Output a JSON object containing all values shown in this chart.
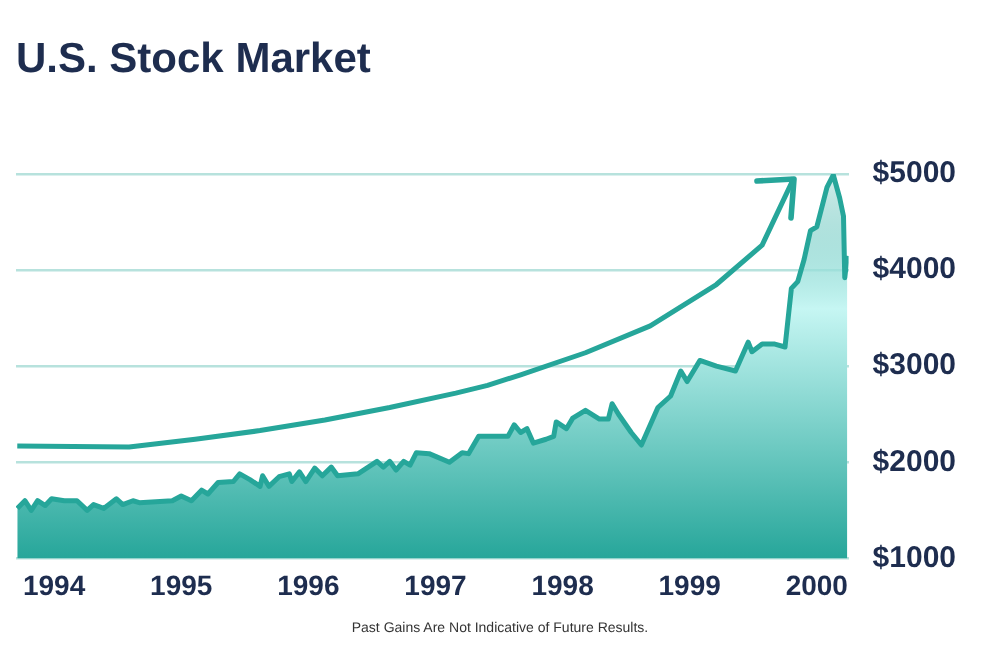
{
  "chart_data": {
    "type": "area",
    "title": "U.S. Stock Market",
    "annotations": [
      "Past Gains Are Not Indicative of Future Results."
    ],
    "x": [
      1993.71,
      1993.77,
      1993.82,
      1993.87,
      1993.93,
      1993.98,
      1994.08,
      1994.18,
      1994.26,
      1994.31,
      1994.39,
      1994.49,
      1994.54,
      1994.62,
      1994.67,
      1994.93,
      1995.0,
      1995.08,
      1995.16,
      1995.21,
      1995.29,
      1995.41,
      1995.46,
      1995.54,
      1995.62,
      1995.64,
      1995.69,
      1995.77,
      1995.85,
      1995.87,
      1995.93,
      1995.98,
      1996.05,
      1996.11,
      1996.18,
      1996.23,
      1996.39,
      1996.54,
      1996.59,
      1996.64,
      1996.69,
      1996.75,
      1996.8,
      1996.85,
      1996.95,
      1997.11,
      1997.21,
      1997.26,
      1997.34,
      1997.41,
      1997.57,
      1997.62,
      1997.67,
      1997.72,
      1997.77,
      1997.87,
      1997.93,
      1997.95,
      1998.03,
      1998.08,
      1998.18,
      1998.29,
      1998.36,
      1998.39,
      1998.44,
      1998.54,
      1998.62,
      1998.75,
      1998.85,
      1998.93,
      1998.98,
      1999.08,
      1999.21,
      1999.36,
      1999.46,
      1999.49,
      1999.57,
      1999.67,
      1999.75,
      1999.8,
      1999.85,
      1999.9,
      1999.95,
      2000.0,
      2000.08,
      2000.13,
      2000.18,
      2000.21,
      2000.22,
      2000.24
    ],
    "series": [
      {
        "color": "#26a69a",
        "values": [
          1520,
          1600,
          1500,
          1600,
          1550,
          1620,
          1600,
          1600,
          1500,
          1560,
          1520,
          1620,
          1560,
          1600,
          1580,
          1600,
          1650,
          1600,
          1710,
          1670,
          1790,
          1800,
          1880,
          1820,
          1750,
          1860,
          1750,
          1850,
          1880,
          1800,
          1900,
          1800,
          1940,
          1860,
          1950,
          1860,
          1880,
          2010,
          1950,
          2010,
          1920,
          2010,
          1970,
          2100,
          2090,
          2000,
          2100,
          2090,
          2270,
          2270,
          2270,
          2390,
          2310,
          2350,
          2200,
          2240,
          2270,
          2420,
          2350,
          2460,
          2540,
          2450,
          2450,
          2610,
          2500,
          2310,
          2180,
          2570,
          2690,
          2950,
          2840,
          3060,
          3000,
          2950,
          3250,
          3150,
          3230,
          3230,
          3200,
          3810,
          3880,
          4110,
          4410,
          4450,
          4860,
          4990,
          4750,
          4560,
          3920,
          4150
        ]
      },
      {
        "type": "line",
        "color": "#26a69a",
        "x": [
          1993.71,
          1994.59,
          1995.11,
          1995.62,
          1996.13,
          1996.64,
          1997.16,
          1997.41,
          1997.67,
          1998.18,
          1998.69,
          1999.21,
          1999.57,
          1999.82
        ],
        "values": [
          2170,
          2160,
          2240,
          2330,
          2440,
          2570,
          2720,
          2800,
          2910,
          3140,
          3420,
          3850,
          4260,
          4960
        ]
      }
    ],
    "xlim": [
      1993.7,
      2000.25
    ],
    "xticks": [
      1994,
      1995,
      1996,
      1997,
      1998,
      1999,
      2000
    ],
    "ylim": [
      1000,
      5000
    ],
    "yticks": [
      {
        "value": 1000,
        "label": "$1000"
      },
      {
        "value": 2000,
        "label": "$2000"
      },
      {
        "value": 3000,
        "label": "$3000"
      },
      {
        "value": 4000,
        "label": "$4000"
      },
      {
        "value": 5000,
        "label": "$5000"
      }
    ],
    "grid": "y",
    "legend": false,
    "marker": "none",
    "line_style": "solid"
  }
}
